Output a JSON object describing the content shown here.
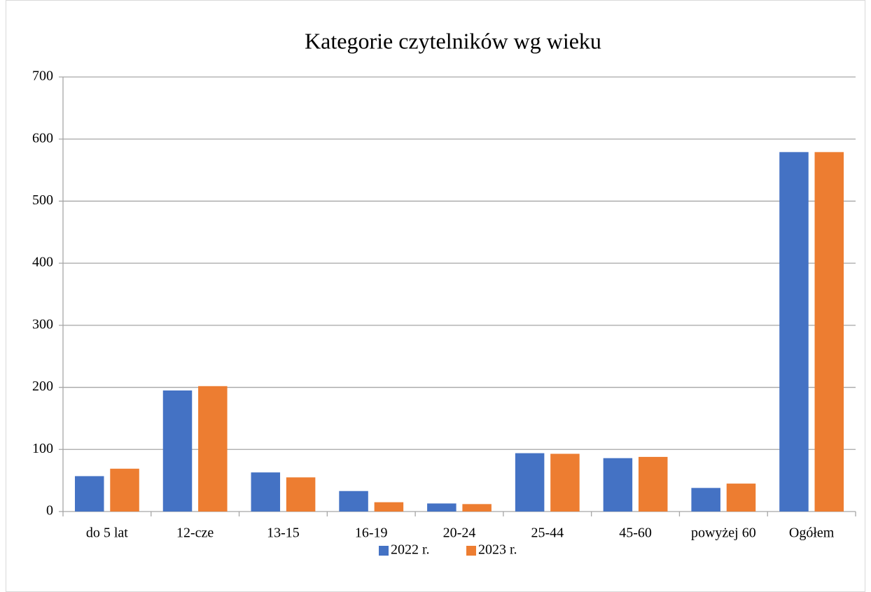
{
  "chart_data": {
    "type": "bar",
    "title": "Kategorie czytelników wg wieku",
    "categories": [
      "do 5 lat",
      "12-cze",
      "13-15",
      "16-19",
      "20-24",
      "25-44",
      "45-60",
      "powyżej 60",
      "Ogółem"
    ],
    "series": [
      {
        "name": "2022 r.",
        "color": "#4472c4",
        "values": [
          57,
          195,
          63,
          33,
          13,
          94,
          86,
          38,
          579
        ]
      },
      {
        "name": "2023 r.",
        "color": "#ed7d31",
        "values": [
          69,
          202,
          55,
          15,
          12,
          93,
          88,
          45,
          579
        ]
      }
    ],
    "ylim": [
      0,
      700
    ],
    "yticks": [
      0,
      100,
      200,
      300,
      400,
      500,
      600,
      700
    ],
    "grid": true,
    "legend": "bottom"
  }
}
